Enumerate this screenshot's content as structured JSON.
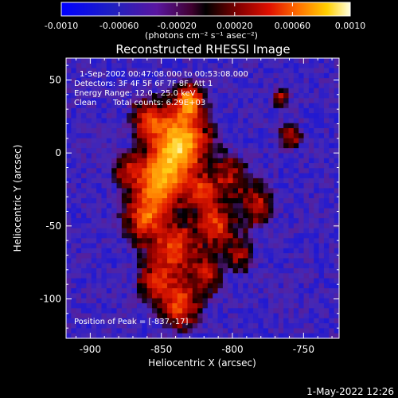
{
  "colorbar": {
    "ticks": [
      "-0.0010",
      "-0.00060",
      "-0.00020",
      "0.00020",
      "0.00060",
      "0.0010"
    ],
    "unit_label": "(photons cm⁻² s⁻¹ asec⁻²)"
  },
  "title": "Reconstructed RHESSI Image",
  "info": {
    "time_range": "1-Sep-2002 00:47:08.000 to 00:53:08.000",
    "detectors": "Detectors: 3F 4F 5F 6F 7F 8F, Att 1",
    "energy": "Energy Range: 12.0 - 25.0 keV",
    "clean": "Clean",
    "counts": "Total counts: 6.29E+03",
    "peak": "Position of Peak = [-837,-17]"
  },
  "axes": {
    "xlabel": "Heliocentric X (arcsec)",
    "ylabel": "Heliocentric Y (arcsec)",
    "x_ticks": [
      "-900",
      "-850",
      "-800",
      "-750"
    ],
    "y_ticks": [
      "50",
      "0",
      "-50",
      "-100"
    ],
    "xlim": [
      -917,
      -725
    ],
    "ylim": [
      -127,
      65
    ]
  },
  "footer": {
    "date": "1-May-2022 12:26"
  },
  "colors": {
    "text": "#ffffff",
    "background": "#000000"
  }
}
